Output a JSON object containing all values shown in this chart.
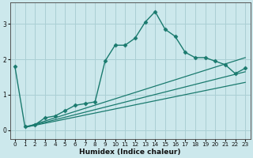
{
  "xlabel": "Humidex (Indice chaleur)",
  "ylabel": "",
  "bg_color": "#cce8ec",
  "grid_color": "#aacfd4",
  "line_color": "#1a7a6e",
  "xlim": [
    -0.5,
    23.5
  ],
  "ylim": [
    -0.25,
    3.6
  ],
  "yticks": [
    0,
    1,
    2,
    3
  ],
  "xticks": [
    0,
    1,
    2,
    3,
    4,
    5,
    6,
    7,
    8,
    9,
    10,
    11,
    12,
    13,
    14,
    15,
    16,
    17,
    18,
    19,
    20,
    21,
    22,
    23
  ],
  "series": [
    {
      "x": [
        0,
        1,
        2,
        3,
        4,
        5,
        6,
        7,
        8,
        9,
        10,
        11,
        12,
        13,
        14,
        15,
        16,
        17,
        18,
        19,
        20,
        21,
        22,
        23
      ],
      "y": [
        1.8,
        0.1,
        0.15,
        0.35,
        0.4,
        0.55,
        0.7,
        0.75,
        0.8,
        1.95,
        2.4,
        2.4,
        2.6,
        3.05,
        3.35,
        2.85,
        2.65,
        2.2,
        2.05,
        2.05,
        1.95,
        1.85,
        1.6,
        1.75
      ],
      "marker": "D",
      "markersize": 2.5,
      "linewidth": 1.0,
      "linestyle": "-"
    },
    {
      "x": [
        1,
        23
      ],
      "y": [
        0.08,
        2.05
      ],
      "marker": null,
      "linewidth": 0.9,
      "linestyle": "-"
    },
    {
      "x": [
        1,
        23
      ],
      "y": [
        0.08,
        1.65
      ],
      "marker": null,
      "linewidth": 0.9,
      "linestyle": "-"
    },
    {
      "x": [
        1,
        23
      ],
      "y": [
        0.08,
        1.35
      ],
      "marker": null,
      "linewidth": 0.9,
      "linestyle": "-"
    }
  ]
}
